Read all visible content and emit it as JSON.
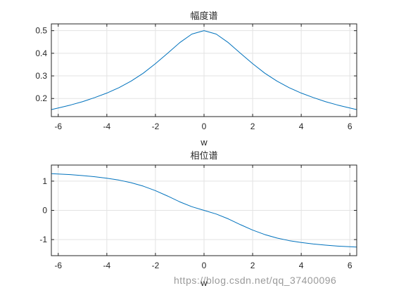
{
  "watermark": "https://blog.csdn.net/qq_37400096",
  "chart_data": [
    {
      "type": "line",
      "title": "幅度谱",
      "xlabel": "w",
      "ylabel": "",
      "xlim": [
        -6.2832,
        6.2832
      ],
      "ylim": [
        0.12,
        0.53
      ],
      "xticks": [
        -6,
        -4,
        -2,
        0,
        2,
        4,
        6
      ],
      "xtick_labels": [
        "-6",
        "-4",
        "-2",
        "0",
        "2",
        "4",
        "6"
      ],
      "yticks": [
        0.2,
        0.3,
        0.4,
        0.5
      ],
      "ytick_labels": [
        "0.2",
        "0.3",
        "0.4",
        "0.5"
      ],
      "grid": true,
      "color": "#0072BD",
      "x": [
        -6.28,
        -6.0,
        -5.5,
        -5.0,
        -4.5,
        -4.0,
        -3.5,
        -3.0,
        -2.5,
        -2.0,
        -1.5,
        -1.0,
        -0.5,
        0.0,
        0.5,
        1.0,
        1.5,
        2.0,
        2.5,
        3.0,
        3.5,
        4.0,
        4.5,
        5.0,
        5.5,
        6.0,
        6.28
      ],
      "y": [
        0.151,
        0.158,
        0.171,
        0.186,
        0.204,
        0.224,
        0.248,
        0.277,
        0.312,
        0.354,
        0.4,
        0.447,
        0.485,
        0.5,
        0.485,
        0.447,
        0.4,
        0.354,
        0.312,
        0.277,
        0.248,
        0.224,
        0.204,
        0.186,
        0.171,
        0.158,
        0.151
      ]
    },
    {
      "type": "line",
      "title": "相位谱",
      "xlabel": "w",
      "ylabel": "",
      "xlim": [
        -6.2832,
        6.2832
      ],
      "ylim": [
        -1.55,
        1.55
      ],
      "xticks": [
        -6,
        -4,
        -2,
        0,
        2,
        4,
        6
      ],
      "xtick_labels": [
        "-6",
        "-4",
        "-2",
        "0",
        "2",
        "4",
        "6"
      ],
      "yticks": [
        -1,
        0,
        1
      ],
      "ytick_labels": [
        "-1",
        "0",
        "1"
      ],
      "grid": true,
      "color": "#0072BD",
      "x": [
        -6.28,
        -6.0,
        -5.5,
        -5.0,
        -4.5,
        -4.0,
        -3.5,
        -3.0,
        -2.5,
        -2.0,
        -1.5,
        -1.0,
        -0.5,
        0.0,
        0.5,
        1.0,
        1.5,
        2.0,
        2.5,
        3.0,
        3.5,
        4.0,
        4.5,
        5.0,
        5.5,
        6.0,
        6.28
      ],
      "y": [
        1.255,
        1.245,
        1.222,
        1.19,
        1.15,
        1.1,
        1.035,
        0.947,
        0.828,
        0.675,
        0.49,
        0.292,
        0.125,
        0.0,
        -0.125,
        -0.292,
        -0.49,
        -0.675,
        -0.828,
        -0.947,
        -1.035,
        -1.1,
        -1.15,
        -1.19,
        -1.222,
        -1.245,
        -1.255
      ]
    }
  ]
}
